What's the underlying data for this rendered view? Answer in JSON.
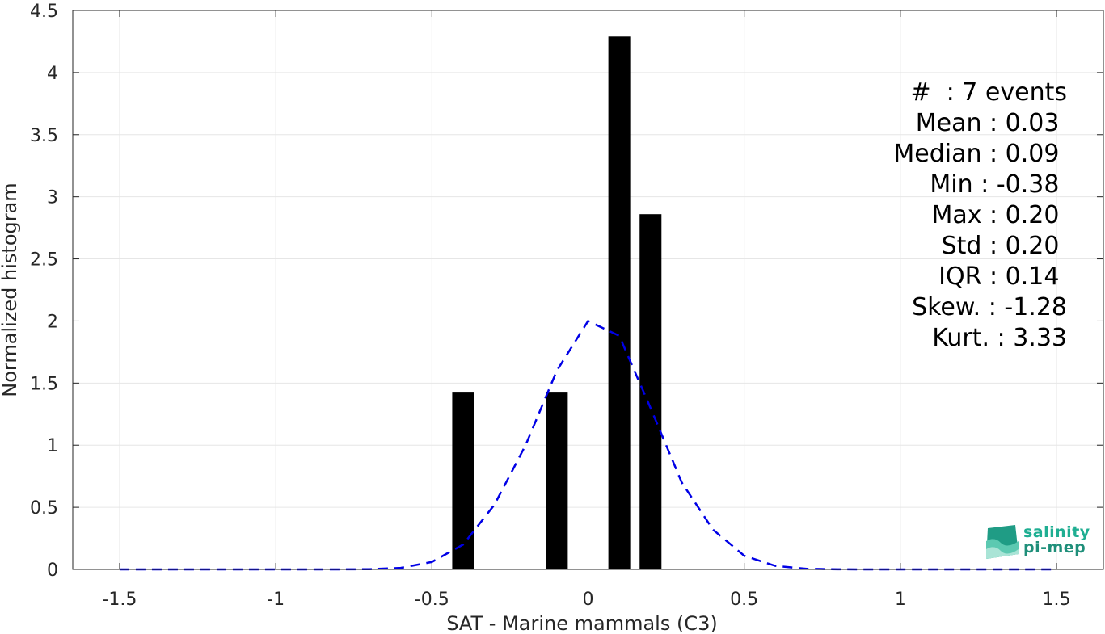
{
  "chart_data": {
    "type": "bar",
    "xlabel": "SAT - Marine mammals (C3)",
    "ylabel": "Normalized histogram",
    "xlim": [
      -1.65,
      1.65
    ],
    "ylim": [
      0,
      4.5
    ],
    "xticks": [
      -1.5,
      -1,
      -0.5,
      0,
      0.5,
      1,
      1.5
    ],
    "xtick_labels": [
      "-1.5",
      "-1",
      "-0.5",
      "0",
      "0.5",
      "1",
      "1.5"
    ],
    "yticks": [
      0,
      0.5,
      1,
      1.5,
      2,
      2.5,
      3,
      3.5,
      4,
      4.5
    ],
    "ytick_labels": [
      "0",
      "0.5",
      "1",
      "1.5",
      "2",
      "2.5",
      "3",
      "3.5",
      "4",
      "4.5"
    ],
    "grid": true,
    "bar_color": "#000000",
    "bars": [
      {
        "x": -0.4,
        "value": 1.43
      },
      {
        "x": -0.1,
        "value": 1.43
      },
      {
        "x": 0.1,
        "value": 4.29
      },
      {
        "x": 0.2,
        "value": 2.86
      }
    ],
    "bar_width": 0.07,
    "fit_line": {
      "color": "#0000e6",
      "style": "dashed",
      "x": [
        -1.5,
        -1.4,
        -1.3,
        -1.2,
        -1.1,
        -1.0,
        -0.9,
        -0.8,
        -0.7,
        -0.6,
        -0.5,
        -0.4,
        -0.3,
        -0.2,
        -0.1,
        0.0,
        0.1,
        0.2,
        0.3,
        0.4,
        0.5,
        0.6,
        0.7,
        0.8,
        0.9,
        1.0,
        1.1,
        1.2,
        1.3,
        1.4,
        1.5
      ],
      "y": [
        0,
        0,
        0,
        0,
        0,
        0,
        0,
        0,
        0.002,
        0.012,
        0.06,
        0.2,
        0.52,
        1.0,
        1.6,
        2.0,
        1.88,
        1.3,
        0.7,
        0.32,
        0.11,
        0.028,
        0.005,
        0.001,
        0,
        0,
        0,
        0,
        0,
        0,
        0
      ]
    }
  },
  "stats": [
    {
      "label": "#  : 7 events"
    },
    {
      "label": "Mean : 0.03 "
    },
    {
      "label": "Median : 0.09 "
    },
    {
      "label": "Min : -0.38 "
    },
    {
      "label": "Max : 0.20 "
    },
    {
      "label": "Std : 0.20 "
    },
    {
      "label": "IQR : 0.14 "
    },
    {
      "label": "Skew. : -1.28"
    },
    {
      "label": "Kurt. : 3.33"
    }
  ],
  "logo": {
    "line1": "salinity",
    "line2": "pi-mep",
    "color1": "#1fae92",
    "color2": "#1f8f7a"
  }
}
